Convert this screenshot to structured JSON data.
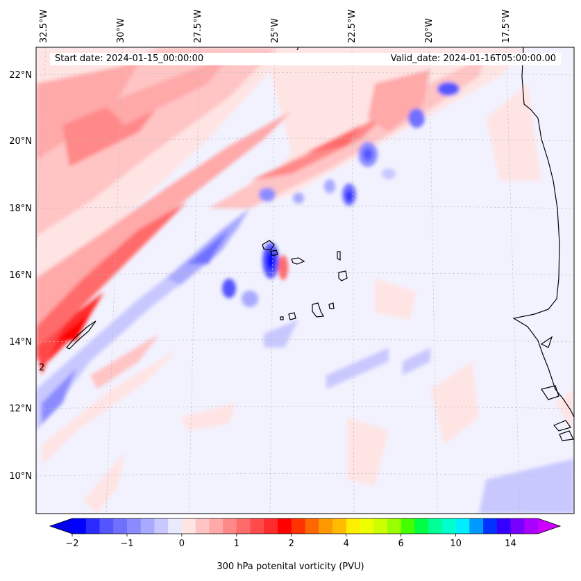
{
  "header": {
    "start_date": "Start date: 2024-01-15_00:00:00",
    "valid_date": "Valid_date: 2024-01-16T05:00:00.00"
  },
  "map": {
    "projection": "lambert conformal",
    "extent": {
      "lon_min": -33.2,
      "lon_max": -15.9,
      "lat_min": 8.8,
      "lat_max": 22.8
    },
    "gridlines": true,
    "lon_labels": [
      "32.5°W",
      "30°W",
      "27.5°W",
      "25°W",
      "22.5°W",
      "20°W",
      "17.5°W"
    ],
    "lat_labels": [
      "22°N",
      "20°N",
      "18°N",
      "16°N",
      "14°N",
      "12°N",
      "10°N"
    ],
    "features": [
      "Cape Verde islands",
      "West Africa coastline"
    ],
    "contour_annotation": "2"
  },
  "colorbar": {
    "title": "300 hPa potenital vorticity (PVU)",
    "ticks": [
      "−2",
      "−1",
      "0",
      "1",
      "2",
      "4",
      "6",
      "10",
      "14"
    ],
    "extend": "both",
    "colors": [
      "#0000ff",
      "#2a2aff",
      "#5555ff",
      "#7070ff",
      "#8b8bff",
      "#a9a9ff",
      "#c8c8ff",
      "#eaeaff",
      "#ffe4e4",
      "#ffc4c4",
      "#ffa9a9",
      "#ff8888",
      "#ff6a6a",
      "#ff4a4a",
      "#ff2a2a",
      "#ff0000",
      "#ff3300",
      "#ff6600",
      "#ff9900",
      "#ffbb00",
      "#ffee00",
      "#eeff00",
      "#ccff00",
      "#99ff00",
      "#44ff00",
      "#00ff44",
      "#00ff99",
      "#00ffcc",
      "#00eeff",
      "#0099ff",
      "#0033ff",
      "#3300ff",
      "#7700ff",
      "#aa00ff"
    ],
    "under_color": "#0000ee",
    "over_color": "#cc00ff"
  }
}
